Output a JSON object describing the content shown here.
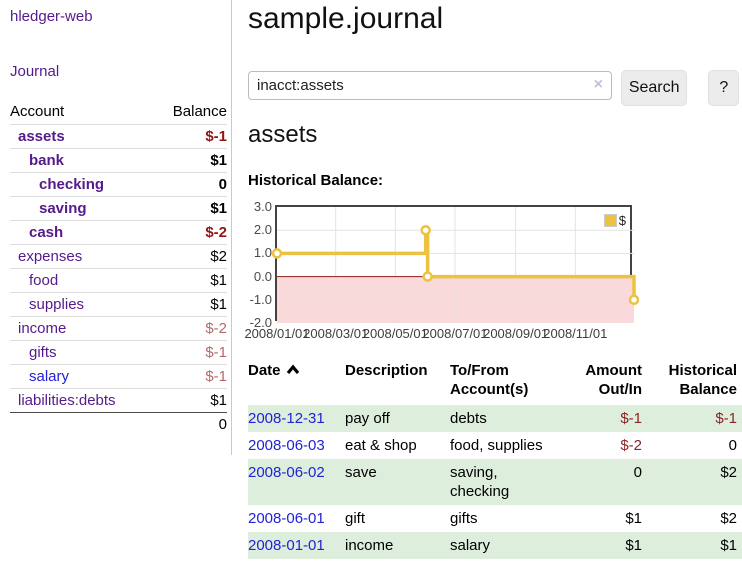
{
  "app": {
    "brand": "hledger-web",
    "nav": {
      "journal": "Journal"
    }
  },
  "page": {
    "title": "sample.journal"
  },
  "search": {
    "value": "inacct:assets",
    "clear": "×",
    "button_label": "Search",
    "help_label": "?"
  },
  "sidebar": {
    "header": {
      "account": "Account",
      "balance": "Balance"
    },
    "accounts": [
      {
        "name": "assets",
        "balance": "$-1",
        "level": 1,
        "emph": true,
        "bal_class": "neg-bold"
      },
      {
        "name": "bank",
        "balance": "$1",
        "level": 2,
        "emph": true,
        "bal_class": ""
      },
      {
        "name": "checking",
        "balance": "0",
        "level": 3,
        "emph": true,
        "bal_class": ""
      },
      {
        "name": "saving",
        "balance": "$1",
        "level": 3,
        "emph": true,
        "bal_class": ""
      },
      {
        "name": "cash",
        "balance": "$-2",
        "level": 2,
        "emph": true,
        "bal_class": "neg-bold"
      },
      {
        "name": "expenses",
        "balance": "$2",
        "level": 1,
        "emph": false,
        "bal_class": ""
      },
      {
        "name": "food",
        "balance": "$1",
        "level": 2,
        "emph": false,
        "bal_class": ""
      },
      {
        "name": "supplies",
        "balance": "$1",
        "level": 2,
        "emph": false,
        "bal_class": ""
      },
      {
        "name": "income",
        "balance": "$-2",
        "level": 1,
        "emph": false,
        "bal_class": "neg-dim"
      },
      {
        "name": "gifts",
        "balance": "$-1",
        "level": 2,
        "emph": false,
        "bal_class": "neg-dim"
      },
      {
        "name": "salary",
        "balance": "$-1",
        "level": 2,
        "emph": false,
        "bal_class": "neg-dim",
        "link_class": "blink"
      },
      {
        "name": "liabilities:debts",
        "balance": "$1",
        "level": 1,
        "emph": false,
        "bal_class": ""
      }
    ],
    "total": "0"
  },
  "account_page": {
    "heading": "assets",
    "chart_title": "Historical Balance:"
  },
  "chart_data": {
    "type": "line",
    "step": true,
    "title": "Historical Balance",
    "legend_position": "top-right",
    "grid": true,
    "x_range": [
      "2008-01-01",
      "2008-12-31"
    ],
    "ylim": [
      -2,
      3
    ],
    "y_ticks": [
      3.0,
      2.0,
      1.0,
      0.0,
      -1.0,
      -2.0
    ],
    "x_ticks": [
      {
        "date": "2008-01-01",
        "label": "2008/01/01"
      },
      {
        "date": "2008-03-01",
        "label": "2008/03/01"
      },
      {
        "date": "2008-05-01",
        "label": "2008/05/01"
      },
      {
        "date": "2008-07-01",
        "label": "2008/07/01"
      },
      {
        "date": "2008-09-01",
        "label": "2008/09/01"
      },
      {
        "date": "2008-11-01",
        "label": "2008/11/01"
      }
    ],
    "series": [
      {
        "name": "$",
        "color": "#edc240",
        "points": [
          {
            "date": "2008-01-01",
            "value": 1
          },
          {
            "date": "2008-06-01",
            "value": 2
          },
          {
            "date": "2008-06-03",
            "value": 0
          },
          {
            "date": "2008-12-31",
            "value": -1
          }
        ]
      }
    ],
    "negative_region_color": "#f9d9d9",
    "zero_line_color": "#8b1a1a",
    "grid_color": "#e3e3e3"
  },
  "register": {
    "columns": [
      {
        "l1": "Date",
        "l2": "",
        "align": "left",
        "sort": "asc"
      },
      {
        "l1": "Description",
        "l2": "",
        "align": "left"
      },
      {
        "l1": "To/From",
        "l2": "Account(s)",
        "align": "left"
      },
      {
        "l1": "Amount",
        "l2": "Out/In",
        "align": "right"
      },
      {
        "l1": "Historical",
        "l2": "Balance",
        "align": "right"
      }
    ],
    "rows": [
      {
        "date": "2008-12-31",
        "description": "pay off",
        "accounts": "debts",
        "amount": "$-1",
        "amount_neg": true,
        "balance": "$-1",
        "balance_neg": true,
        "shaded": true
      },
      {
        "date": "2008-06-03",
        "description": "eat & shop",
        "accounts": "food, supplies",
        "amount": "$-2",
        "amount_neg": true,
        "balance": "0",
        "balance_neg": false,
        "shaded": false
      },
      {
        "date": "2008-06-02",
        "description": "save",
        "accounts": "saving, checking",
        "amount": "0",
        "amount_neg": false,
        "balance": "$2",
        "balance_neg": false,
        "shaded": true
      },
      {
        "date": "2008-06-01",
        "description": "gift",
        "accounts": "gifts",
        "amount": "$1",
        "amount_neg": false,
        "balance": "$2",
        "balance_neg": false,
        "shaded": false
      },
      {
        "date": "2008-01-01",
        "description": "income",
        "accounts": "salary",
        "amount": "$1",
        "amount_neg": false,
        "balance": "$1",
        "balance_neg": false,
        "shaded": true
      }
    ]
  },
  "colors": {
    "link_purple": "#551a8b",
    "link_blue": "#2222d6",
    "neg_strong": "#941414",
    "neg_dim": "#b36a6a",
    "neg_table": "#8e2323",
    "row_green": "#ddeedd",
    "series_yellow": "#edc240"
  }
}
